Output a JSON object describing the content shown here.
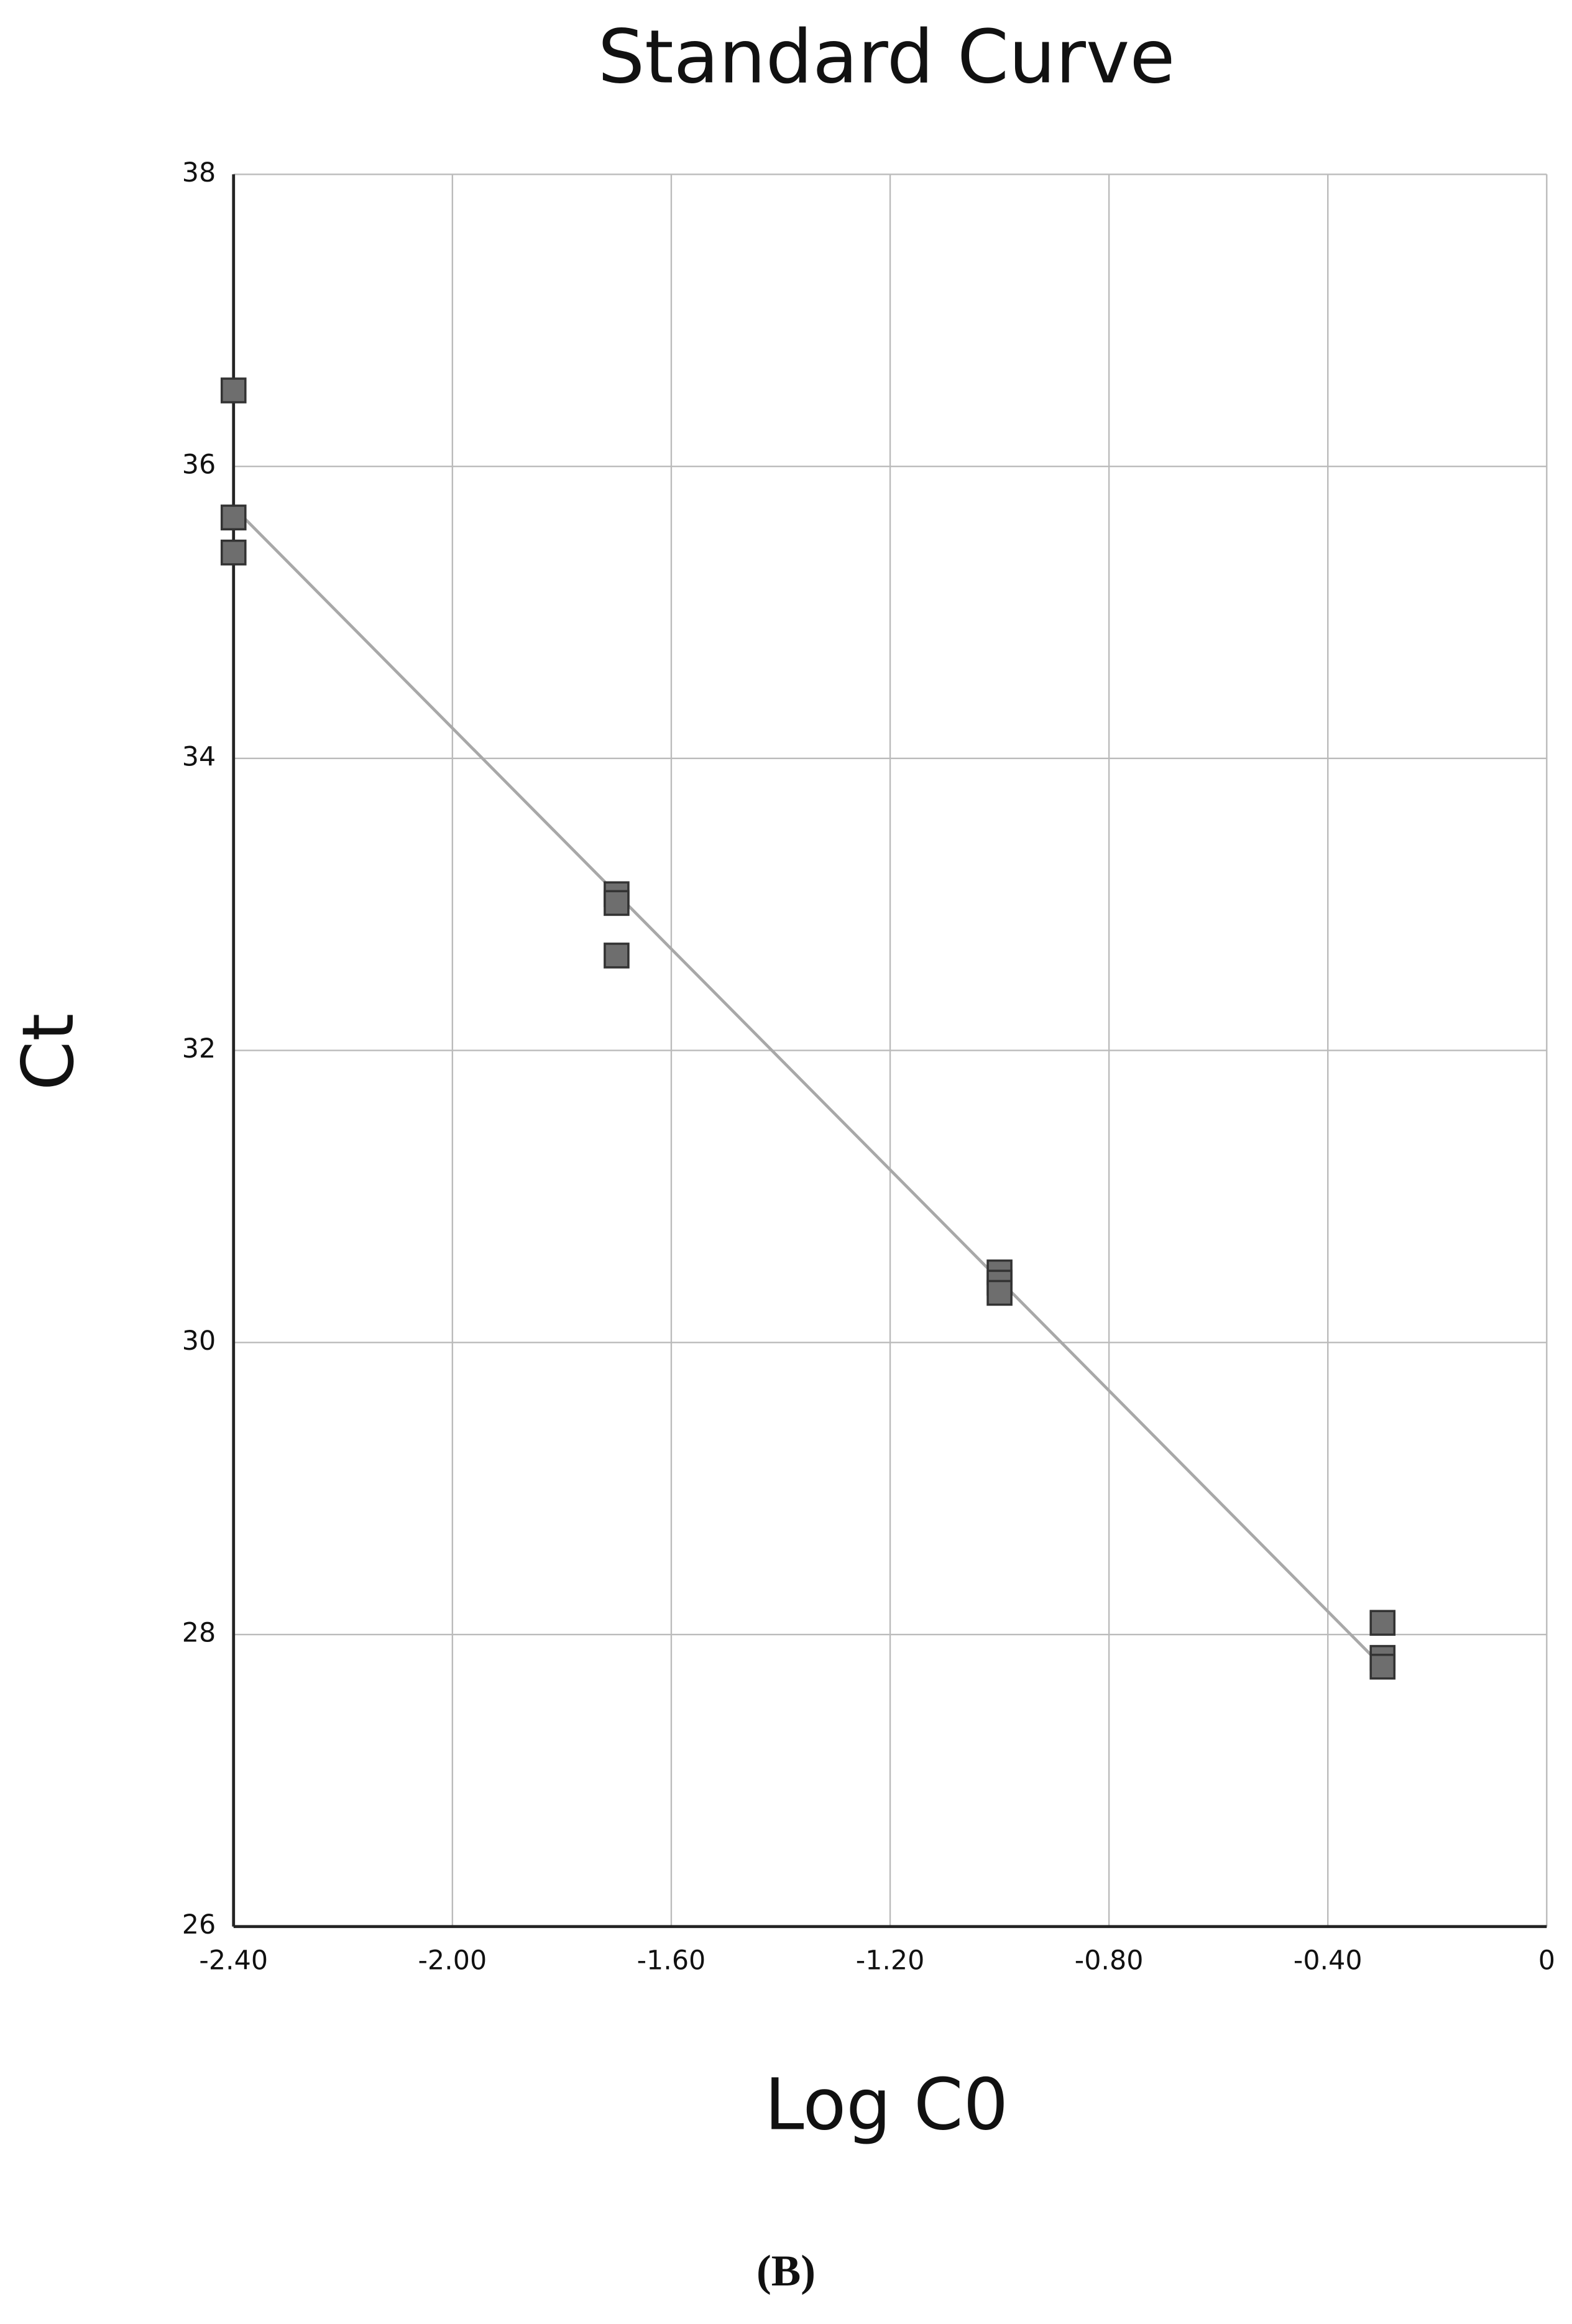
{
  "chart_data": {
    "type": "scatter",
    "title": "Standard Curve",
    "x_label": "Log C0",
    "y_label": "Ct",
    "series": [
      {
        "color": "#6e6e6e",
        "x": [
          -2.4,
          -2.4,
          -2.4,
          -1.7,
          -1.7,
          -1.7,
          -1.0,
          -1.0,
          -1.0,
          -0.3,
          -0.3,
          -0.3
        ],
        "y": [
          36.52,
          35.65,
          35.41,
          33.07,
          33.01,
          32.65,
          30.48,
          30.41,
          30.34,
          28.08,
          27.84,
          27.78
        ]
      }
    ],
    "trendline": {
      "color": "#a8a8a8",
      "x": [
        -2.4,
        -0.3
      ],
      "y": [
        35.72,
        27.78
      ]
    },
    "xlim": [
      -2.4,
      0
    ],
    "ylim": [
      26,
      38
    ],
    "xticks": [
      {
        "value": -2.4,
        "label": "-2.40"
      },
      {
        "value": -2.0,
        "label": "-2.00"
      },
      {
        "value": -1.6,
        "label": "-1.60"
      },
      {
        "value": -1.2,
        "label": "-1.20"
      },
      {
        "value": -0.8,
        "label": "-0.80"
      },
      {
        "value": -0.4,
        "label": "-0.40"
      },
      0
    ],
    "yticks": [
      26,
      28,
      30,
      32,
      34,
      36,
      38
    ],
    "grid": true
  },
  "caption": "(B)"
}
